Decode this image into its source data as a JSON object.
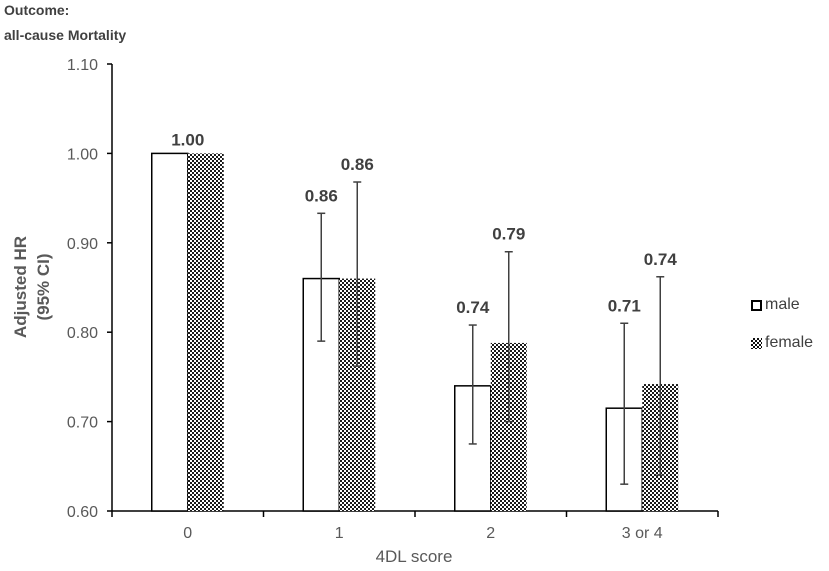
{
  "header": {
    "line1": "Outcome:",
    "line2": "all-cause Mortality"
  },
  "colors": {
    "axis": "#000000",
    "text": "#595959",
    "label": "#404040",
    "male_fill": "#ffffff",
    "bar_stroke": "#000000",
    "female_pattern_dot": "#000000",
    "errorbar": "#404040"
  },
  "chart_data": {
    "type": "bar",
    "categories": [
      "0",
      "1",
      "2",
      "3 or 4"
    ],
    "xlabel": "4DL score",
    "ylabel": "Adjusted HR",
    "ylabel2": "(95% CI)",
    "ylim": [
      0.6,
      1.1
    ],
    "yticks": [
      "0.60",
      "0.70",
      "0.80",
      "0.90",
      "1.00",
      "1.10"
    ],
    "legend_placement": "right",
    "series": [
      {
        "name": "male",
        "fill": "white",
        "values": [
          1.0,
          0.86,
          0.74,
          0.715
        ],
        "ci_low": [
          null,
          0.79,
          0.675,
          0.63
        ],
        "ci_high": [
          null,
          0.933,
          0.808,
          0.81
        ],
        "labels": [
          "1.00",
          "0.86",
          "0.74",
          "0.71"
        ]
      },
      {
        "name": "female",
        "fill": "pattern",
        "values": [
          1.0,
          0.86,
          0.788,
          0.742
        ],
        "ci_low": [
          null,
          0.762,
          0.7,
          0.64
        ],
        "ci_high": [
          null,
          0.968,
          0.89,
          0.862
        ],
        "labels": [
          "",
          "0.86",
          "0.79",
          "0.74"
        ]
      }
    ]
  }
}
